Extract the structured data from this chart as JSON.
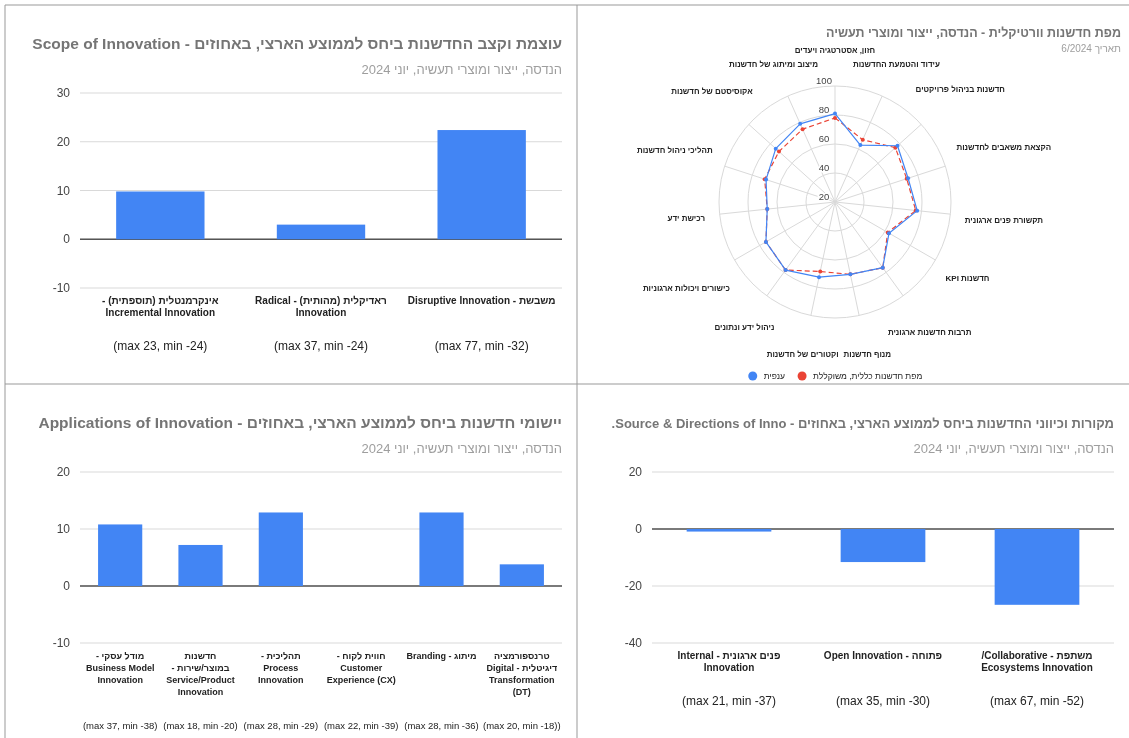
{
  "chart_data": [
    {
      "type": "bar",
      "title": "עוצמת וקצב החדשנות ביחס לממוצע הארצי, באחוזים - Scope of Innovation",
      "subtitle": "הנדסה, ייצור ומוצרי תעשיה, יוני 2024",
      "categories": [
        "אינקרמנטלית (תוספתית) - Incremental Innovation",
        "ראדיקלית (מהותית) - Radical Innovation",
        "משבשת - Disruptive Innovation"
      ],
      "values": [
        9.8,
        3.0,
        22.4
      ],
      "color": "#4285f4",
      "ylim": [
        -10,
        30
      ],
      "yticks": [
        -10,
        0,
        10,
        20,
        30
      ],
      "grid": "y",
      "annotations": [
        "(max 23, min -24)",
        "(max 37, min -24)",
        "(max 77, min -32)"
      ]
    },
    {
      "type": "radar",
      "title": "מפת חדשנות וורטיקלית - הנדסה, ייצור ומוצרי תעשיה",
      "subtitle": "תאריך 6/2024",
      "categories": [
        "חזון, אסטרטגיה ויעדים",
        "עידוד והטמעת החדשנות",
        "חדשנות בניהול פרויקטים",
        "הקצאת משאבים לחדשנות",
        "תקשורת פנים ארגונית",
        "חדשנות KPI",
        "תרבות חדשנות ארגונית",
        "מנוף חדשנות",
        "וקטורים של חדשנות",
        "ניהול ידע ונתונים",
        "כישורים ויכולות ארגוניות",
        "רכישת ידע",
        "תהליכי ניהול חדשנות",
        "אקוסיסטם של חדשנות",
        "מיצוב ומיתוג של חדשנות"
      ],
      "series": [
        {
          "name": "מפת חדשנות כללית, משוקללת",
          "color": "#ea4335",
          "line_style": "dashed",
          "values": [
            78,
            67,
            76,
            72,
            76,
            62,
            76,
            71,
            69,
            78,
            75,
            67,
            71,
            72,
            75
          ]
        },
        {
          "name": "ענפית",
          "color": "#4285f4",
          "line_style": "solid",
          "values": [
            81,
            63,
            78,
            73,
            77,
            63,
            76,
            71,
            73,
            78,
            75,
            67,
            70,
            75,
            79
          ]
        }
      ],
      "ylim": [
        20,
        100
      ],
      "yticks": [
        20,
        40,
        60,
        80,
        100
      ],
      "grid": true,
      "legend": "bottom",
      "marker": "circle"
    },
    {
      "type": "bar",
      "title": "יישומי חדשנות ביחס לממוצע הארצי, באחוזים - Applications of Innovation",
      "subtitle": "הנדסה, ייצור ומוצרי תעשיה, יוני 2024",
      "categories": [
        "מודל עסקי - Business Model Innovation",
        "חדשנות במוצר/שירות - Service/Product Innovation",
        "תהליכית - Process Innovation",
        "חווית לקוח - Customer Experience (CX)",
        "מיתוג - Branding",
        "טרנספורמציה דיגיטלית - Digital Transformation (DT)"
      ],
      "values": [
        10.8,
        7.2,
        12.9,
        null,
        12.9,
        3.8
      ],
      "color": "#4285f4",
      "ylim": [
        -10,
        20
      ],
      "yticks": [
        -10,
        0,
        10,
        20
      ],
      "grid": true,
      "annotations": [
        "(max 37, min -38)",
        "(max 18, min -20)",
        "(max 28, min -29)",
        "(max 22, min -39)",
        "(max 28, min -36)",
        "(max 20, min -18))"
      ]
    },
    {
      "type": "bar",
      "title": "מקורות וכיווני החדשנות ביחס לממוצע הארצי, באחוזים - Source & Directions of Inno.",
      "subtitle": "הנדסה, ייצור ומוצרי תעשיה, יוני 2024",
      "categories": [
        "פנים ארגונית - Internal Innovation",
        "פתוחה - Open Innovation",
        "משתפת - Collaborative/ Ecosystems Innovation"
      ],
      "values": [
        -0.9,
        -11.6,
        -26.6
      ],
      "color": "#4285f4",
      "ylim": [
        -40,
        20
      ],
      "yticks": [
        -40,
        -20,
        0,
        20
      ],
      "grid": true,
      "annotations": [
        "(max 21, min -37)",
        "(max 35, min -30)",
        "(max 67, min -52)"
      ]
    }
  ]
}
